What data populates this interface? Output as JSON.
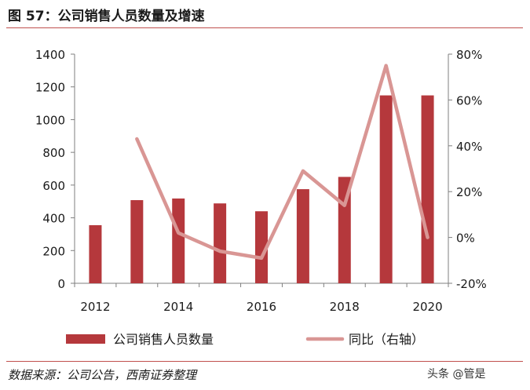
{
  "figure": {
    "title": "图 57：公司销售人员数量及增速",
    "source": "数据来源：公司公告，西南证券整理",
    "watermark": "头条 @管是"
  },
  "colors": {
    "bar": "#b5383c",
    "line": "#d99694",
    "axis": "#7f7f7f",
    "rule": "#c0504d"
  },
  "chart_data": {
    "type": "bar+line",
    "title": "公司销售人员数量及增速",
    "x": [
      2012,
      2013,
      2014,
      2015,
      2016,
      2017,
      2018,
      2019,
      2020
    ],
    "x_tick_labels": [
      "2012",
      "2014",
      "2016",
      "2018",
      "2020"
    ],
    "series": [
      {
        "name": "公司销售人员数量",
        "type": "bar",
        "axis": "left",
        "values": [
          355,
          508,
          518,
          488,
          440,
          575,
          650,
          1148,
          1148
        ]
      },
      {
        "name": "同比（右轴）",
        "type": "line",
        "axis": "right",
        "values": [
          null,
          43,
          2,
          -6,
          -9,
          29,
          14,
          75,
          0
        ]
      }
    ],
    "left_axis": {
      "min": 0,
      "max": 1400,
      "ticks": [
        "0",
        "200",
        "400",
        "600",
        "800",
        "1000",
        "1200",
        "1400"
      ]
    },
    "right_axis": {
      "min": -20,
      "max": 80,
      "ticks": [
        "-20%",
        "0%",
        "20%",
        "40%",
        "60%",
        "80%"
      ]
    },
    "legend": [
      "公司销售人员数量",
      "同比（右轴）"
    ],
    "legend_position": "bottom"
  }
}
